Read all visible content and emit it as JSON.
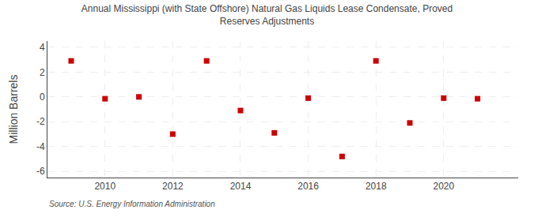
{
  "chart_data": {
    "type": "scatter",
    "title": "Annual Mississippi (with State Offshore) Natural Gas Liquids Lease Condensate, Proved\nReserves Adjustments",
    "ylabel": "Million Barrels",
    "annotations": [
      "Source: U.S. Energy Information Administration"
    ],
    "x": [
      2009,
      2010,
      2011,
      2012,
      2013,
      2014,
      2015,
      2016,
      2017,
      2018,
      2019,
      2020,
      2021
    ],
    "values": [
      2.9,
      -0.15,
      0.0,
      -3.0,
      2.9,
      -1.1,
      -2.9,
      -0.1,
      -4.8,
      2.9,
      -2.1,
      -0.1,
      -0.15
    ],
    "color": "#cc0000",
    "marker": "square",
    "xlim": [
      2008.3,
      2022.2
    ],
    "ylim": [
      -6.5,
      4.5
    ],
    "xticks": [
      2010,
      2012,
      2014,
      2016,
      2018,
      2020
    ],
    "yticks": [
      -6,
      -4,
      -2,
      0,
      2,
      4
    ],
    "grid": true
  }
}
